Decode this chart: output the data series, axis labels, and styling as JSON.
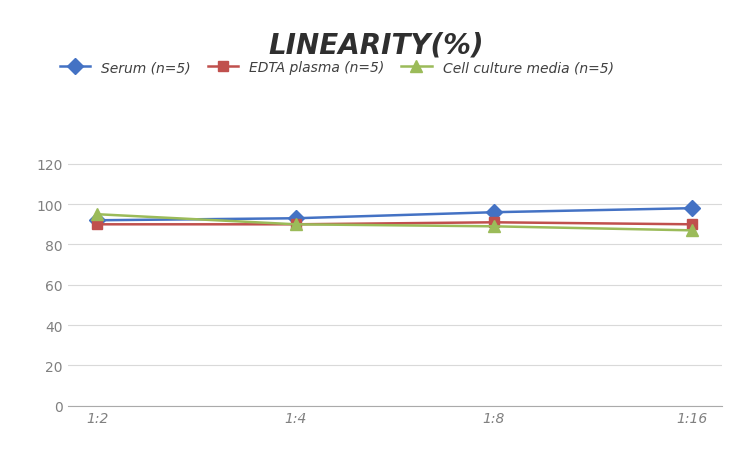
{
  "title": "LINEARITY(%)",
  "x_labels": [
    "1:2",
    "1:4",
    "1:8",
    "1:16"
  ],
  "x_positions": [
    0,
    1,
    2,
    3
  ],
  "series": [
    {
      "label": "Serum (n=5)",
      "values": [
        92,
        93,
        96,
        98
      ],
      "color": "#4472C4",
      "marker": "D",
      "markersize": 8,
      "linewidth": 1.8
    },
    {
      "label": "EDTA plasma (n=5)",
      "values": [
        90,
        90,
        91,
        90
      ],
      "color": "#C0504D",
      "marker": "s",
      "markersize": 7,
      "linewidth": 1.8
    },
    {
      "label": "Cell culture media (n=5)",
      "values": [
        95,
        90,
        89,
        87
      ],
      "color": "#9BBB59",
      "marker": "^",
      "markersize": 8,
      "linewidth": 1.8
    }
  ],
  "ylim": [
    0,
    130
  ],
  "yticks": [
    0,
    20,
    40,
    60,
    80,
    100,
    120
  ],
  "grid_color": "#D9D9D9",
  "background_color": "#FFFFFF",
  "title_fontsize": 20,
  "title_fontstyle": "italic",
  "title_fontweight": "bold",
  "legend_fontsize": 10,
  "tick_fontsize": 10,
  "tick_color": "#808080"
}
